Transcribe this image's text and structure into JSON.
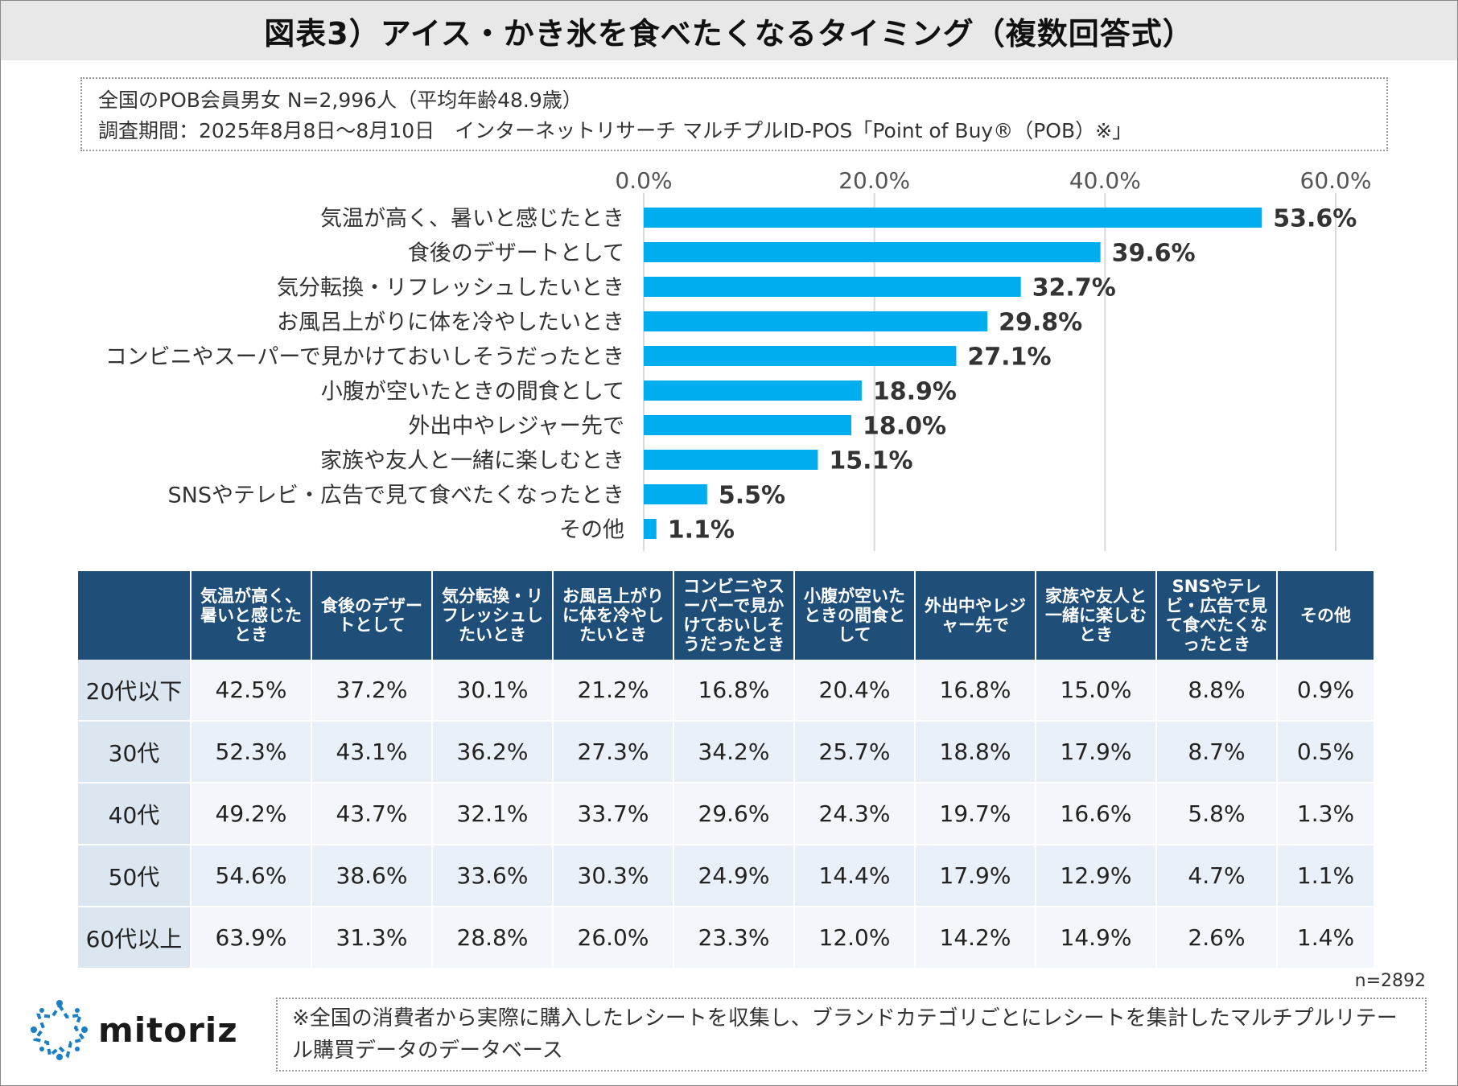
{
  "title": "図表3）アイス・かき氷を食べたくなるタイミング（複数回答式）",
  "info": {
    "line1": "全国のPOB会員男女 N=2,996人（平均年齢48.9歳）",
    "line2": "調査期間：2025年8月8日〜8月10日　インターネットリサーチ マルチプルID-POS「Point of Buy®（POB）※」"
  },
  "chart_data": {
    "type": "bar",
    "orientation": "horizontal",
    "categories": [
      "気温が高く、暑いと感じたとき",
      "食後のデザートとして",
      "気分転換・リフレッシュしたいとき",
      "お風呂上がりに体を冷やしたいとき",
      "コンビニやスーパーで見かけておいしそうだったとき",
      "小腹が空いたときの間食として",
      "外出中やレジャー先で",
      "家族や友人と一緒に楽しむとき",
      "SNSやテレビ・広告で見て食べたくなったとき",
      "その他"
    ],
    "values": [
      53.6,
      39.6,
      32.7,
      29.8,
      27.1,
      18.9,
      18.0,
      15.1,
      5.5,
      1.1
    ],
    "value_labels": [
      "53.6%",
      "39.6%",
      "32.7%",
      "29.8%",
      "27.1%",
      "18.9%",
      "18.0%",
      "15.1%",
      "5.5%",
      "1.1%"
    ],
    "xlim": [
      0,
      60
    ],
    "xticks": [
      "0.0%",
      "20.0%",
      "40.0%",
      "60.0%"
    ],
    "axis_position": "top",
    "grid": true,
    "bar_color": "#00aeef"
  },
  "table": {
    "headers": [
      "",
      "気温が高く、暑いと感じたとき",
      "食後のデザートとして",
      "気分転換・リフレッシュしたいとき",
      "お風呂上がりに体を冷やしたいとき",
      "コンビニやスーパーで見かけておいしそうだったとき",
      "小腹が空いたときの間食として",
      "外出中やレジャー先で",
      "家族や友人と一緒に楽しむとき",
      "SNSやテレビ・広告で見て食べたくなったとき",
      "その他"
    ],
    "rows": [
      [
        "20代以下",
        "42.5%",
        "37.2%",
        "30.1%",
        "21.2%",
        "16.8%",
        "20.4%",
        "16.8%",
        "15.0%",
        "8.8%",
        "0.9%"
      ],
      [
        "30代",
        "52.3%",
        "43.1%",
        "36.2%",
        "27.3%",
        "34.2%",
        "25.7%",
        "18.8%",
        "17.9%",
        "8.7%",
        "0.5%"
      ],
      [
        "40代",
        "49.2%",
        "43.7%",
        "32.1%",
        "33.7%",
        "29.6%",
        "24.3%",
        "19.7%",
        "16.6%",
        "5.8%",
        "1.3%"
      ],
      [
        "50代",
        "54.6%",
        "38.6%",
        "33.6%",
        "30.3%",
        "24.9%",
        "14.4%",
        "17.9%",
        "12.9%",
        "4.7%",
        "1.1%"
      ],
      [
        "60代以上",
        "63.9%",
        "31.3%",
        "28.8%",
        "26.0%",
        "23.3%",
        "12.0%",
        "14.2%",
        "14.9%",
        "2.6%",
        "1.4%"
      ]
    ]
  },
  "sample": "n=2892",
  "logo_text": "mitoriz",
  "footnote": "※全国の消費者から実際に購入したレシートを収集し、ブランドカテゴリごとにレシートを集計したマルチプルリテール購買データのデータベース"
}
